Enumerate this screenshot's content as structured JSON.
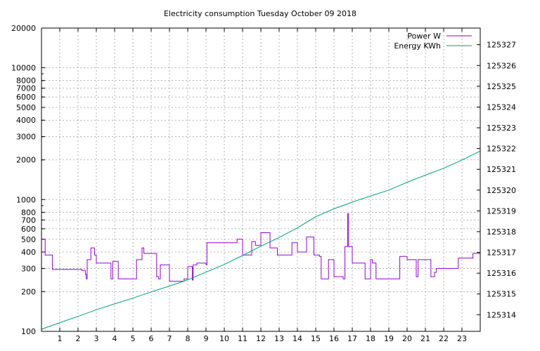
{
  "chart_data": {
    "type": "line",
    "title": "Electricity consumption Tuesday October 09 2018",
    "xlabel": "",
    "ylabel": "",
    "y2label": "",
    "xlim": [
      0,
      24
    ],
    "x_ticks": [
      1,
      2,
      3,
      4,
      5,
      6,
      7,
      8,
      9,
      10,
      11,
      12,
      13,
      14,
      15,
      16,
      17,
      18,
      19,
      20,
      21,
      22,
      23
    ],
    "ylim": [
      100,
      20000
    ],
    "y_scale": "log",
    "y_ticks": [
      100,
      200,
      300,
      400,
      500,
      600,
      700,
      800,
      1000,
      2000,
      3000,
      4000,
      5000,
      6000,
      7000,
      8000,
      10000,
      20000
    ],
    "y2lim": [
      125313.2,
      125327.8
    ],
    "y2_ticks": [
      125314,
      125315,
      125316,
      125317,
      125318,
      125319,
      125320,
      125321,
      125322,
      125323,
      125324,
      125325,
      125326,
      125327
    ],
    "grid": true,
    "legend_position": "top-right",
    "series": [
      {
        "name": "Power W",
        "axis": "y",
        "color": "#9400d3",
        "style": "steps",
        "x": [
          0,
          0.2,
          0.5,
          0.6,
          2.2,
          2.4,
          2.45,
          2.5,
          2.7,
          2.9,
          3,
          3.4,
          3.8,
          3.9,
          4.2,
          5.1,
          5.2,
          5.5,
          5.6,
          6.2,
          6.3,
          6.4,
          6.5,
          6.9,
          7.0,
          7.5,
          7.8,
          8.0,
          8.2,
          8.25,
          8.3,
          8.5,
          8.8,
          9.0,
          9.05,
          10.2,
          10.7,
          11.0,
          11.5,
          11.7,
          12.0,
          12.5,
          12.9,
          13.0,
          13.7,
          13.9,
          14.0,
          14.5,
          14.6,
          14.9,
          15.0,
          15.2,
          15.3,
          15.7,
          16.0,
          16.4,
          16.5,
          16.6,
          16.65,
          16.75,
          16.8,
          17.0,
          17.3,
          17.7,
          18.0,
          18.1,
          18.3,
          19.1,
          19.6,
          19.7,
          20.0,
          20.1,
          20.5,
          20.6,
          21.3,
          21.5,
          21.6,
          22.8,
          23.6,
          24
        ],
        "values": [
          500,
          380,
          380,
          295,
          290,
          270,
          250,
          350,
          430,
          380,
          330,
          330,
          250,
          340,
          250,
          250,
          350,
          430,
          390,
          390,
          260,
          250,
          320,
          320,
          240,
          240,
          250,
          310,
          310,
          245,
          320,
          330,
          330,
          320,
          470,
          470,
          500,
          380,
          480,
          450,
          560,
          430,
          380,
          380,
          470,
          470,
          400,
          520,
          520,
          380,
          380,
          370,
          250,
          350,
          260,
          260,
          250,
          440,
          440,
          780,
          440,
          330,
          330,
          250,
          350,
          330,
          250,
          250,
          370,
          370,
          350,
          350,
          260,
          350,
          260,
          280,
          300,
          360,
          390,
          300
        ]
      },
      {
        "name": "Energy KWh",
        "axis": "y2",
        "color": "#009e73",
        "style": "line",
        "x": [
          0,
          1,
          2,
          3,
          4,
          5,
          6,
          7,
          8,
          9,
          10,
          11,
          12,
          13,
          14,
          15,
          16,
          17,
          18,
          19,
          20,
          21,
          22,
          23,
          24
        ],
        "values": [
          125313.3,
          125313.62,
          125313.92,
          125314.24,
          125314.52,
          125314.8,
          125315.1,
          125315.38,
          125315.68,
          125316.05,
          125316.42,
          125316.85,
          125317.3,
          125317.72,
          125318.18,
          125318.72,
          125319.1,
          125319.42,
          125319.72,
          125320.0,
          125320.38,
          125320.72,
          125321.05,
          125321.45,
          125321.88
        ]
      }
    ]
  }
}
